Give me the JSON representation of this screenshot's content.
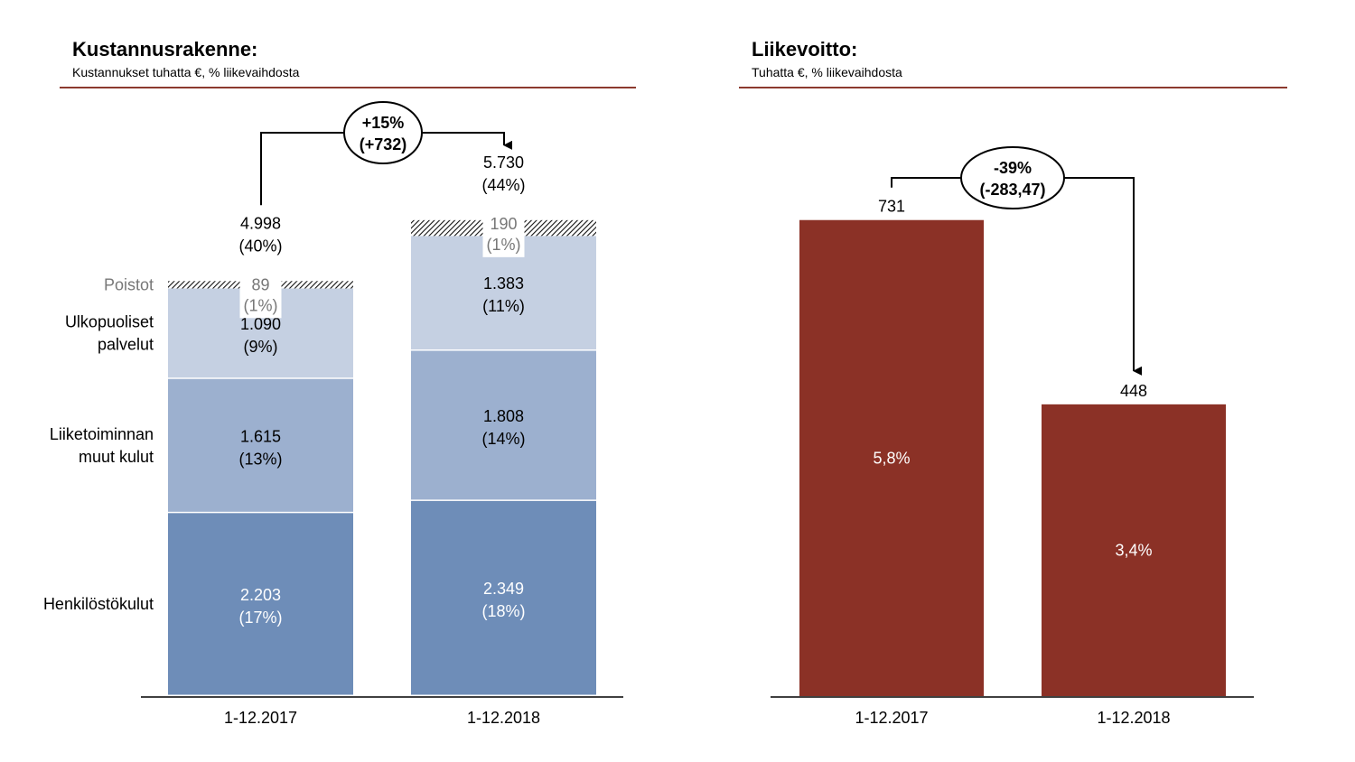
{
  "left": {
    "title": "Kustannusrakenne:",
    "subtitle": "Kustannukset tuhatta €, % liikevaihdosta"
  },
  "right": {
    "title": "Liikevoitto:",
    "subtitle": "Tuhatta €, % liikevaihdosta"
  },
  "chart_data": [
    {
      "type": "bar",
      "stacked": true,
      "title": "Kustannusrakenne:",
      "subtitle": "Kustannukset tuhatta €, % liikevaihdosta",
      "categories": [
        "1-12.2017",
        "1-12.2018"
      ],
      "series": [
        {
          "name": "Henkilöstökulut",
          "values": [
            2203,
            2349
          ],
          "value_labels": [
            "2.203",
            "2.349"
          ],
          "pct_labels": [
            "(17%)",
            "(18%)"
          ],
          "color": "#6e8db8"
        },
        {
          "name": "Liiketoiminnan muut kulut",
          "label_lines": [
            "Liiketoiminnan",
            "muut kulut"
          ],
          "values": [
            1615,
            1808
          ],
          "value_labels": [
            "1.615",
            "1.808"
          ],
          "pct_labels": [
            "(13%)",
            "(14%)"
          ],
          "color": "#9cb0cf"
        },
        {
          "name": "Ulkopuoliset palvelut",
          "label_lines": [
            "Ulkopuoliset",
            "palvelut"
          ],
          "values": [
            1090,
            1383
          ],
          "value_labels": [
            "1.090",
            "1.383"
          ],
          "pct_labels": [
            "(9%)",
            "(11%)"
          ],
          "color": "#c5d0e2"
        },
        {
          "name": "Poistot",
          "values": [
            89,
            190
          ],
          "value_labels": [
            "89",
            "190"
          ],
          "pct_labels": [
            "(1%)",
            "(1%)"
          ],
          "color": "hatched"
        }
      ],
      "totals": {
        "values": [
          4998,
          5730
        ],
        "labels": [
          "4.998",
          "5.730"
        ],
        "pct_labels": [
          "(40%)",
          "(44%)"
        ]
      },
      "change": {
        "pct": "+15%",
        "abs": "(+732)"
      }
    },
    {
      "type": "bar",
      "title": "Liikevoitto:",
      "subtitle": "Tuhatta €, % liikevaihdosta",
      "categories": [
        "1-12.2017",
        "1-12.2018"
      ],
      "values": [
        731,
        448
      ],
      "value_labels": [
        "731",
        "448"
      ],
      "pct_labels": [
        "5,8%",
        "3,4%"
      ],
      "color": "#8b3126",
      "change": {
        "pct": "-39%",
        "abs": "(-283,47)"
      }
    }
  ]
}
